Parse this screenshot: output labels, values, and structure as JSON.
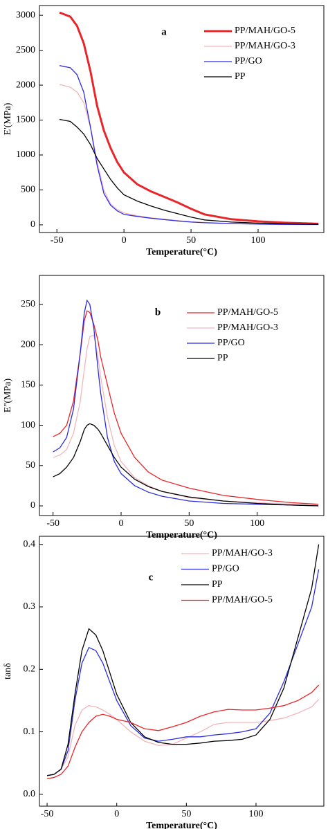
{
  "chart_data": [
    {
      "type": "line",
      "annotation": "a",
      "ylabel": "E'(MPa)",
      "xlabel": "Temperature(°C)",
      "xlim": [
        -63,
        149
      ],
      "ylim": [
        -110,
        3140
      ],
      "xticks": [
        -50,
        0,
        50,
        100
      ],
      "yticks": [
        0,
        500,
        1000,
        1500,
        2000,
        2500,
        3000
      ],
      "legend": "upper right",
      "x": [
        -48,
        -40,
        -35,
        -30,
        -25,
        -20,
        -15,
        -10,
        -5,
        0,
        10,
        20,
        30,
        40,
        50,
        60,
        80,
        100,
        120,
        145
      ],
      "series": [
        {
          "name": "PP/MAH/GO-5",
          "color": "#e8262a",
          "values": [
            3040,
            2980,
            2850,
            2600,
            2200,
            1700,
            1350,
            1100,
            900,
            750,
            580,
            480,
            400,
            320,
            230,
            150,
            80,
            50,
            30,
            15
          ]
        },
        {
          "name": "PP/MAH/GO-3",
          "color": "#f2b6ba",
          "values": [
            2010,
            1970,
            1900,
            1750,
            1400,
            900,
            500,
            300,
            220,
            170,
            130,
            100,
            80,
            60,
            45,
            35,
            20,
            12,
            8,
            5
          ]
        },
        {
          "name": "PP/GO",
          "color": "#2b2be0",
          "values": [
            2280,
            2250,
            2150,
            1900,
            1400,
            850,
            450,
            280,
            200,
            150,
            120,
            95,
            75,
            55,
            40,
            30,
            18,
            10,
            6,
            4
          ]
        },
        {
          "name": "PP",
          "color": "#000000",
          "values": [
            1510,
            1480,
            1400,
            1300,
            1150,
            950,
            800,
            650,
            530,
            430,
            340,
            270,
            210,
            160,
            110,
            70,
            40,
            25,
            15,
            8
          ]
        }
      ]
    },
    {
      "type": "line",
      "annotation": "b",
      "ylabel": "E''(MPa)",
      "xlabel": "Temperature(°C)",
      "xlim": [
        -60,
        149
      ],
      "ylim": [
        -12,
        286
      ],
      "xticks": [
        -50,
        0,
        50,
        100
      ],
      "yticks": [
        0,
        50,
        100,
        150,
        200,
        250
      ],
      "legend": "upper right",
      "x": [
        -50,
        -45,
        -40,
        -35,
        -30,
        -27,
        -25,
        -23,
        -20,
        -17,
        -15,
        -10,
        -5,
        0,
        10,
        20,
        30,
        50,
        75,
        100,
        125,
        145
      ],
      "series": [
        {
          "name": "PP/MAH/GO-5",
          "color": "#e8262a",
          "values": [
            86,
            90,
            100,
            130,
            190,
            230,
            242,
            240,
            225,
            205,
            185,
            150,
            115,
            90,
            60,
            42,
            32,
            22,
            13,
            8,
            4,
            2
          ]
        },
        {
          "name": "PP/MAH/GO-3",
          "color": "#f2b6ba",
          "values": [
            60,
            63,
            70,
            90,
            130,
            170,
            195,
            210,
            212,
            185,
            160,
            110,
            75,
            55,
            35,
            25,
            18,
            10,
            6,
            4,
            2,
            1
          ]
        },
        {
          "name": "PP/GO",
          "color": "#2b2be0",
          "values": [
            67,
            72,
            85,
            120,
            190,
            240,
            255,
            250,
            220,
            170,
            140,
            85,
            55,
            40,
            25,
            17,
            12,
            6,
            3,
            2,
            1,
            0
          ]
        },
        {
          "name": "PP",
          "color": "#000000",
          "values": [
            36,
            40,
            48,
            60,
            80,
            95,
            100,
            102,
            100,
            95,
            90,
            75,
            60,
            48,
            33,
            24,
            18,
            11,
            6,
            3,
            1,
            0
          ]
        }
      ]
    },
    {
      "type": "line",
      "annotation": "c",
      "ylabel": "tanδ",
      "xlabel": "Temperature(°C)",
      "xlim": [
        -55.5,
        148.7
      ],
      "ylim": [
        -0.019,
        0.413
      ],
      "xticks": [
        -50,
        0,
        50,
        100
      ],
      "yticks": [
        {
          "value": 0,
          "label": "0.0"
        },
        0.1,
        0.2,
        0.3,
        0.4
      ],
      "legend": "upper right",
      "x": [
        -50,
        -45,
        -40,
        -35,
        -30,
        -25,
        -20,
        -15,
        -10,
        -5,
        0,
        10,
        20,
        30,
        40,
        50,
        60,
        70,
        80,
        90,
        100,
        110,
        120,
        130,
        140,
        145
      ],
      "series": [
        {
          "name": "PP/MAH/GO-3",
          "color": "#f2b6ba",
          "values": [
            0.03,
            0.032,
            0.04,
            0.06,
            0.11,
            0.135,
            0.142,
            0.14,
            0.135,
            0.128,
            0.12,
            0.1,
            0.085,
            0.078,
            0.08,
            0.09,
            0.1,
            0.112,
            0.115,
            0.115,
            0.115,
            0.118,
            0.122,
            0.13,
            0.14,
            0.152
          ]
        },
        {
          "name": "PP/GO",
          "color": "#2b2be0",
          "values": [
            0.03,
            0.032,
            0.04,
            0.07,
            0.15,
            0.21,
            0.235,
            0.23,
            0.21,
            0.18,
            0.15,
            0.11,
            0.09,
            0.085,
            0.088,
            0.092,
            0.092,
            0.095,
            0.097,
            0.1,
            0.105,
            0.13,
            0.18,
            0.24,
            0.3,
            0.36
          ]
        },
        {
          "name": "PP",
          "color": "#000000",
          "values": [
            0.03,
            0.032,
            0.04,
            0.08,
            0.16,
            0.23,
            0.265,
            0.255,
            0.23,
            0.195,
            0.16,
            0.115,
            0.092,
            0.083,
            0.08,
            0.08,
            0.082,
            0.085,
            0.086,
            0.088,
            0.095,
            0.12,
            0.17,
            0.25,
            0.33,
            0.4
          ]
        },
        {
          "name": "PP/MAH/GO-5",
          "color": "#e8262a",
          "values": [
            0.025,
            0.027,
            0.032,
            0.045,
            0.075,
            0.1,
            0.115,
            0.125,
            0.128,
            0.125,
            0.12,
            0.115,
            0.105,
            0.102,
            0.108,
            0.115,
            0.125,
            0.132,
            0.136,
            0.135,
            0.135,
            0.138,
            0.142,
            0.15,
            0.163,
            0.175
          ]
        }
      ]
    }
  ]
}
